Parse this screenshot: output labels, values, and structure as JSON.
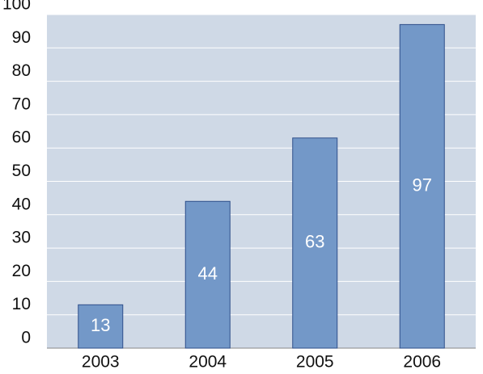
{
  "chart_data": {
    "type": "bar",
    "categories": [
      "2003",
      "2004",
      "2005",
      "2006"
    ],
    "values": [
      13,
      44,
      63,
      97
    ],
    "color": "#7398c8",
    "ylim": [
      0,
      100
    ],
    "yticks": [
      0,
      10,
      20,
      30,
      40,
      50,
      60,
      70,
      80,
      90,
      100
    ],
    "grid": true
  }
}
